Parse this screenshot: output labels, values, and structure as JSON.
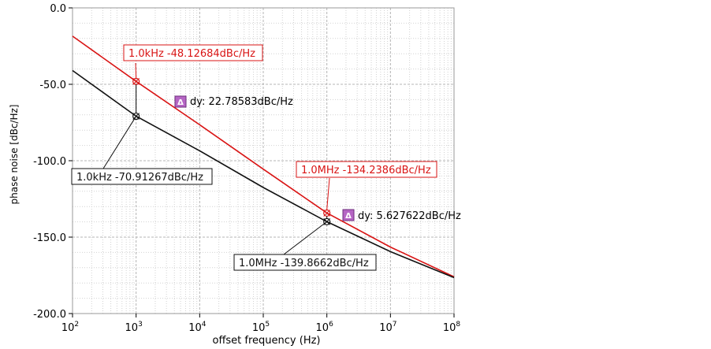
{
  "chart_data": {
    "type": "line",
    "xlabel": "offset frequency (Hz)",
    "ylabel": "phase noise [dBc/Hz]",
    "x_scale": "log",
    "xlim": [
      100,
      100000000
    ],
    "ylim": [
      -200,
      0
    ],
    "grid": true,
    "y_ticks": [
      "0.0",
      "-50.0",
      "-100.0",
      "-150.0",
      "-200.0"
    ],
    "x_ticks": [
      {
        "base": "10",
        "exp": "2"
      },
      {
        "base": "10",
        "exp": "3"
      },
      {
        "base": "10",
        "exp": "4"
      },
      {
        "base": "10",
        "exp": "5"
      },
      {
        "base": "10",
        "exp": "6"
      },
      {
        "base": "10",
        "exp": "7"
      },
      {
        "base": "10",
        "exp": "8"
      }
    ],
    "series": [
      {
        "color": "#d91414",
        "x": [
          100,
          1000,
          10000,
          100000,
          1000000,
          10000000,
          100000000
        ],
        "y": [
          -18.5,
          -48.1,
          -76.5,
          -105.5,
          -134.2,
          -156.5,
          -176.0
        ]
      },
      {
        "color": "#111111",
        "x": [
          100,
          1000,
          10000,
          100000,
          1000000,
          10000000,
          100000000
        ],
        "y": [
          -41.0,
          -70.9,
          -93.5,
          -117.5,
          -139.9,
          -159.5,
          -176.5
        ]
      }
    ],
    "markers": [
      {
        "x": 1000,
        "y": -48.12684,
        "series": 0,
        "label": "1.0kHz -48.12684dBc/Hz"
      },
      {
        "x": 1000,
        "y": -70.91267,
        "series": 1,
        "label": "1.0kHz -70.91267dBc/Hz"
      },
      {
        "x": 1000000,
        "y": -134.2386,
        "series": 0,
        "label": "1.0MHz -134.2386dBc/Hz"
      },
      {
        "x": 1000000,
        "y": -139.8662,
        "series": 1,
        "label": "1.0MHz -139.8662dBc/Hz"
      }
    ],
    "deltas": [
      {
        "label": "dy: 22.78583dBc/Hz",
        "icon": "delta-icon"
      },
      {
        "label": "dy: 5.627622dBc/Hz",
        "icon": "delta-icon"
      }
    ]
  }
}
